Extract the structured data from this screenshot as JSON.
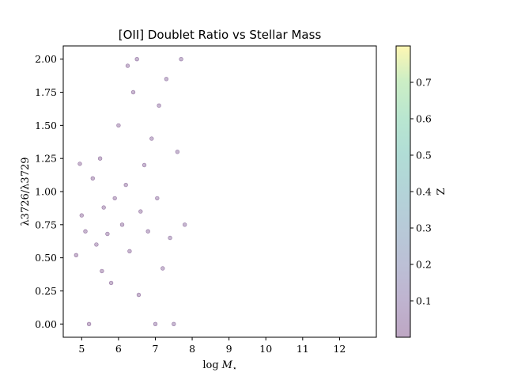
{
  "chart_data": {
    "type": "scatter",
    "title": "[OII] Doublet Ratio vs Stellar Mass",
    "xlabel_base": "log",
    "xlabel_var": "M",
    "xlabel_sub": "⋆",
    "ylabel": "λ3726/λ3729",
    "xlim": [
      4.5,
      13.0
    ],
    "ylim": [
      -0.1,
      2.1
    ],
    "xticks": [
      5,
      6,
      7,
      8,
      9,
      10,
      11,
      12
    ],
    "xtick_labels": [
      "5",
      "6",
      "7",
      "8",
      "9",
      "10",
      "11",
      "12"
    ],
    "yticks": [
      0.0,
      0.25,
      0.5,
      0.75,
      1.0,
      1.25,
      1.5,
      1.75,
      2.0
    ],
    "ytick_labels": [
      "0.00",
      "0.25",
      "0.50",
      "0.75",
      "1.00",
      "1.25",
      "1.50",
      "1.75",
      "2.00"
    ],
    "grid": false,
    "colormap": "viridis",
    "point_alpha": 0.3,
    "colorbar": {
      "label": "Z",
      "range": [
        0.0,
        0.8
      ],
      "ticks": [
        0.1,
        0.2,
        0.3,
        0.4,
        0.5,
        0.6,
        0.7
      ],
      "tick_labels": [
        "0.1",
        "0.2",
        "0.3",
        "0.4",
        "0.5",
        "0.6",
        "0.7"
      ]
    },
    "points": [
      [
        4.85,
        0.52,
        0.02
      ],
      [
        4.95,
        1.21,
        0.02
      ],
      [
        5.0,
        0.82,
        0.02
      ],
      [
        5.1,
        0.7,
        0.03
      ],
      [
        5.2,
        0.0,
        0.02
      ],
      [
        5.3,
        1.1,
        0.03
      ],
      [
        5.4,
        0.6,
        0.03
      ],
      [
        5.5,
        1.25,
        0.03
      ],
      [
        5.55,
        0.4,
        0.02
      ],
      [
        5.6,
        0.88,
        0.03
      ],
      [
        5.7,
        0.68,
        0.03
      ],
      [
        5.8,
        0.31,
        0.03
      ],
      [
        5.9,
        0.95,
        0.03
      ],
      [
        6.0,
        1.5,
        0.03
      ],
      [
        6.1,
        0.75,
        0.03
      ],
      [
        6.2,
        1.05,
        0.03
      ],
      [
        6.25,
        1.95,
        0.03
      ],
      [
        6.3,
        0.55,
        0.03
      ],
      [
        6.4,
        1.75,
        0.03
      ],
      [
        6.5,
        2.0,
        0.04
      ],
      [
        6.55,
        0.22,
        0.03
      ],
      [
        6.6,
        0.85,
        0.03
      ],
      [
        6.7,
        1.2,
        0.04
      ],
      [
        6.8,
        0.7,
        0.04
      ],
      [
        6.9,
        1.4,
        0.04
      ],
      [
        7.0,
        0.0,
        0.04
      ],
      [
        7.05,
        0.95,
        0.04
      ],
      [
        7.1,
        1.65,
        0.04
      ],
      [
        7.2,
        0.42,
        0.04
      ],
      [
        7.3,
        1.85,
        0.05
      ],
      [
        7.4,
        0.65,
        0.05
      ],
      [
        7.5,
        0.0,
        0.05
      ],
      [
        7.6,
        1.3,
        0.05
      ],
      [
        7.7,
        2.0,
        0.05
      ],
      [
        7.8,
        0.75,
        0.05
      ]
    ]
  }
}
